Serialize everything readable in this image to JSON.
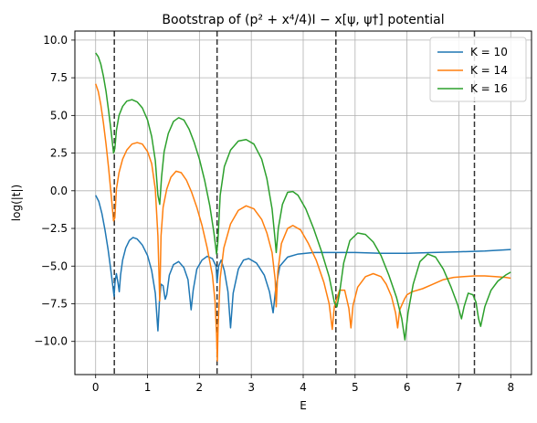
{
  "chart_data": {
    "type": "line",
    "title": "Bootstrap of (p² + x⁴/4)I − x[ψ, ψ†] potential",
    "xlabel": "E",
    "ylabel": "log(|t|)",
    "xlim": [
      -0.4,
      8.4
    ],
    "ylim": [
      -12.2,
      10.6
    ],
    "xticks": [
      0,
      1,
      2,
      3,
      4,
      5,
      6,
      7,
      8
    ],
    "yticks": [
      10.0,
      7.5,
      5.0,
      2.5,
      0.0,
      -2.5,
      -5.0,
      -7.5,
      -10.0
    ],
    "ytick_labels": [
      "10.0",
      "7.5",
      "5.0",
      "2.5",
      "0.0",
      "−2.5",
      "−5.0",
      "−7.5",
      "−10.0"
    ],
    "grid": true,
    "legend_position": "top-right",
    "vlines": [
      0.36,
      2.34,
      4.63,
      7.3
    ],
    "series": [
      {
        "name": "K = 10",
        "color": "#1f77b4",
        "points": [
          [
            0.0,
            -0.3
          ],
          [
            0.06,
            -0.7
          ],
          [
            0.12,
            -1.5
          ],
          [
            0.18,
            -2.6
          ],
          [
            0.24,
            -3.9
          ],
          [
            0.29,
            -5.2
          ],
          [
            0.33,
            -6.3
          ],
          [
            0.355,
            -7.0
          ],
          [
            0.375,
            -6.0
          ],
          [
            0.4,
            -5.5
          ],
          [
            0.43,
            -6.1
          ],
          [
            0.455,
            -6.7
          ],
          [
            0.48,
            -5.6
          ],
          [
            0.52,
            -4.6
          ],
          [
            0.58,
            -3.8
          ],
          [
            0.65,
            -3.3
          ],
          [
            0.72,
            -3.1
          ],
          [
            0.8,
            -3.2
          ],
          [
            0.9,
            -3.6
          ],
          [
            1.0,
            -4.3
          ],
          [
            1.08,
            -5.3
          ],
          [
            1.15,
            -6.8
          ],
          [
            1.2,
            -9.3
          ],
          [
            1.23,
            -7.3
          ],
          [
            1.26,
            -6.2
          ],
          [
            1.3,
            -6.3
          ],
          [
            1.34,
            -7.2
          ],
          [
            1.37,
            -6.9
          ],
          [
            1.42,
            -5.6
          ],
          [
            1.5,
            -4.9
          ],
          [
            1.6,
            -4.7
          ],
          [
            1.7,
            -5.1
          ],
          [
            1.78,
            -5.9
          ],
          [
            1.84,
            -7.9
          ],
          [
            1.88,
            -6.6
          ],
          [
            1.95,
            -5.2
          ],
          [
            2.05,
            -4.6
          ],
          [
            2.15,
            -4.35
          ],
          [
            2.25,
            -4.5
          ],
          [
            2.32,
            -5.0
          ],
          [
            2.34,
            -6.1
          ],
          [
            2.37,
            -5.0
          ],
          [
            2.42,
            -4.6
          ],
          [
            2.48,
            -5.3
          ],
          [
            2.55,
            -6.7
          ],
          [
            2.6,
            -9.1
          ],
          [
            2.65,
            -6.8
          ],
          [
            2.75,
            -5.2
          ],
          [
            2.85,
            -4.6
          ],
          [
            2.95,
            -4.5
          ],
          [
            3.1,
            -4.8
          ],
          [
            3.25,
            -5.6
          ],
          [
            3.35,
            -6.7
          ],
          [
            3.42,
            -8.1
          ],
          [
            3.47,
            -6.5
          ],
          [
            3.55,
            -5.0
          ],
          [
            3.7,
            -4.4
          ],
          [
            3.9,
            -4.2
          ],
          [
            4.2,
            -4.1
          ],
          [
            5.0,
            -4.1
          ],
          [
            5.5,
            -4.15
          ],
          [
            6.0,
            -4.15
          ],
          [
            6.5,
            -4.1
          ],
          [
            7.0,
            -4.05
          ],
          [
            7.5,
            -4.0
          ],
          [
            8.0,
            -3.9
          ]
        ]
      },
      {
        "name": "K = 14",
        "color": "#ff7f0e",
        "points": [
          [
            0.0,
            7.1
          ],
          [
            0.05,
            6.6
          ],
          [
            0.1,
            5.7
          ],
          [
            0.15,
            4.5
          ],
          [
            0.2,
            3.1
          ],
          [
            0.25,
            1.5
          ],
          [
            0.3,
            -0.3
          ],
          [
            0.345,
            -2.0
          ],
          [
            0.37,
            -1.8
          ],
          [
            0.4,
            0.1
          ],
          [
            0.45,
            1.2
          ],
          [
            0.52,
            2.1
          ],
          [
            0.6,
            2.7
          ],
          [
            0.7,
            3.1
          ],
          [
            0.8,
            3.2
          ],
          [
            0.9,
            3.1
          ],
          [
            1.0,
            2.6
          ],
          [
            1.08,
            1.8
          ],
          [
            1.15,
            0.1
          ],
          [
            1.2,
            -3.0
          ],
          [
            1.235,
            -7.3
          ],
          [
            1.26,
            -3.0
          ],
          [
            1.3,
            -1.1
          ],
          [
            1.37,
            0.1
          ],
          [
            1.45,
            0.9
          ],
          [
            1.55,
            1.3
          ],
          [
            1.65,
            1.2
          ],
          [
            1.75,
            0.7
          ],
          [
            1.85,
            -0.1
          ],
          [
            1.95,
            -1.1
          ],
          [
            2.05,
            -2.3
          ],
          [
            2.15,
            -3.8
          ],
          [
            2.25,
            -5.6
          ],
          [
            2.3,
            -7.3
          ],
          [
            2.33,
            -9.5
          ],
          [
            2.345,
            -11.3
          ],
          [
            2.36,
            -9.0
          ],
          [
            2.4,
            -5.8
          ],
          [
            2.47,
            -3.8
          ],
          [
            2.6,
            -2.2
          ],
          [
            2.75,
            -1.3
          ],
          [
            2.9,
            -1.0
          ],
          [
            3.05,
            -1.2
          ],
          [
            3.2,
            -1.9
          ],
          [
            3.3,
            -2.8
          ],
          [
            3.4,
            -4.1
          ],
          [
            3.46,
            -5.9
          ],
          [
            3.48,
            -7.7
          ],
          [
            3.51,
            -5.4
          ],
          [
            3.58,
            -3.5
          ],
          [
            3.7,
            -2.5
          ],
          [
            3.8,
            -2.3
          ],
          [
            3.95,
            -2.6
          ],
          [
            4.1,
            -3.5
          ],
          [
            4.25,
            -4.6
          ],
          [
            4.4,
            -6.1
          ],
          [
            4.5,
            -7.5
          ],
          [
            4.56,
            -9.2
          ],
          [
            4.6,
            -7.7
          ],
          [
            4.7,
            -6.6
          ],
          [
            4.8,
            -6.6
          ],
          [
            4.88,
            -7.8
          ],
          [
            4.92,
            -9.1
          ],
          [
            4.96,
            -7.6
          ],
          [
            5.05,
            -6.4
          ],
          [
            5.2,
            -5.7
          ],
          [
            5.35,
            -5.5
          ],
          [
            5.5,
            -5.7
          ],
          [
            5.6,
            -6.2
          ],
          [
            5.7,
            -7.0
          ],
          [
            5.78,
            -8.1
          ],
          [
            5.82,
            -9.1
          ],
          [
            5.86,
            -7.9
          ],
          [
            5.95,
            -7.2
          ],
          [
            6.0,
            -6.9
          ],
          [
            6.1,
            -6.7
          ],
          [
            6.3,
            -6.5
          ],
          [
            6.5,
            -6.2
          ],
          [
            6.7,
            -5.9
          ],
          [
            6.9,
            -5.75
          ],
          [
            7.1,
            -5.7
          ],
          [
            7.3,
            -5.65
          ],
          [
            7.5,
            -5.65
          ],
          [
            7.7,
            -5.7
          ],
          [
            7.9,
            -5.75
          ],
          [
            8.0,
            -5.8
          ]
        ]
      },
      {
        "name": "K = 16",
        "color": "#2ca02c",
        "points": [
          [
            0.0,
            9.15
          ],
          [
            0.05,
            8.9
          ],
          [
            0.1,
            8.4
          ],
          [
            0.15,
            7.6
          ],
          [
            0.2,
            6.6
          ],
          [
            0.25,
            5.3
          ],
          [
            0.3,
            3.9
          ],
          [
            0.345,
            2.5
          ],
          [
            0.37,
            2.8
          ],
          [
            0.4,
            4.0
          ],
          [
            0.45,
            5.0
          ],
          [
            0.52,
            5.6
          ],
          [
            0.6,
            5.95
          ],
          [
            0.7,
            6.05
          ],
          [
            0.8,
            5.9
          ],
          [
            0.9,
            5.5
          ],
          [
            1.0,
            4.7
          ],
          [
            1.08,
            3.6
          ],
          [
            1.15,
            2.0
          ],
          [
            1.2,
            -0.3
          ],
          [
            1.235,
            -0.9
          ],
          [
            1.27,
            0.9
          ],
          [
            1.32,
            2.6
          ],
          [
            1.4,
            3.8
          ],
          [
            1.5,
            4.6
          ],
          [
            1.6,
            4.85
          ],
          [
            1.7,
            4.7
          ],
          [
            1.8,
            4.1
          ],
          [
            1.9,
            3.2
          ],
          [
            2.0,
            2.1
          ],
          [
            2.1,
            0.7
          ],
          [
            2.2,
            -1.0
          ],
          [
            2.28,
            -2.8
          ],
          [
            2.33,
            -4.2
          ],
          [
            2.355,
            -3.4
          ],
          [
            2.4,
            -0.3
          ],
          [
            2.48,
            1.6
          ],
          [
            2.6,
            2.7
          ],
          [
            2.75,
            3.3
          ],
          [
            2.9,
            3.4
          ],
          [
            3.05,
            3.1
          ],
          [
            3.2,
            2.1
          ],
          [
            3.3,
            0.8
          ],
          [
            3.4,
            -1.2
          ],
          [
            3.46,
            -3.3
          ],
          [
            3.48,
            -4.1
          ],
          [
            3.52,
            -2.5
          ],
          [
            3.6,
            -0.9
          ],
          [
            3.7,
            -0.1
          ],
          [
            3.8,
            -0.05
          ],
          [
            3.9,
            -0.3
          ],
          [
            4.05,
            -1.2
          ],
          [
            4.2,
            -2.5
          ],
          [
            4.35,
            -4.0
          ],
          [
            4.5,
            -5.7
          ],
          [
            4.6,
            -7.4
          ],
          [
            4.65,
            -7.7
          ],
          [
            4.7,
            -6.8
          ],
          [
            4.78,
            -4.8
          ],
          [
            4.9,
            -3.3
          ],
          [
            5.05,
            -2.8
          ],
          [
            5.2,
            -2.9
          ],
          [
            5.35,
            -3.4
          ],
          [
            5.5,
            -4.3
          ],
          [
            5.65,
            -5.6
          ],
          [
            5.8,
            -7.1
          ],
          [
            5.9,
            -8.5
          ],
          [
            5.96,
            -9.9
          ],
          [
            6.02,
            -8.1
          ],
          [
            6.12,
            -6.2
          ],
          [
            6.25,
            -4.7
          ],
          [
            6.4,
            -4.2
          ],
          [
            6.55,
            -4.4
          ],
          [
            6.7,
            -5.2
          ],
          [
            6.85,
            -6.4
          ],
          [
            6.98,
            -7.6
          ],
          [
            7.05,
            -8.5
          ],
          [
            7.1,
            -7.7
          ],
          [
            7.18,
            -6.8
          ],
          [
            7.27,
            -6.9
          ],
          [
            7.33,
            -7.4
          ],
          [
            7.38,
            -8.5
          ],
          [
            7.42,
            -9.0
          ],
          [
            7.5,
            -7.7
          ],
          [
            7.62,
            -6.6
          ],
          [
            7.75,
            -6.0
          ],
          [
            7.9,
            -5.6
          ],
          [
            8.0,
            -5.4
          ]
        ]
      }
    ]
  }
}
